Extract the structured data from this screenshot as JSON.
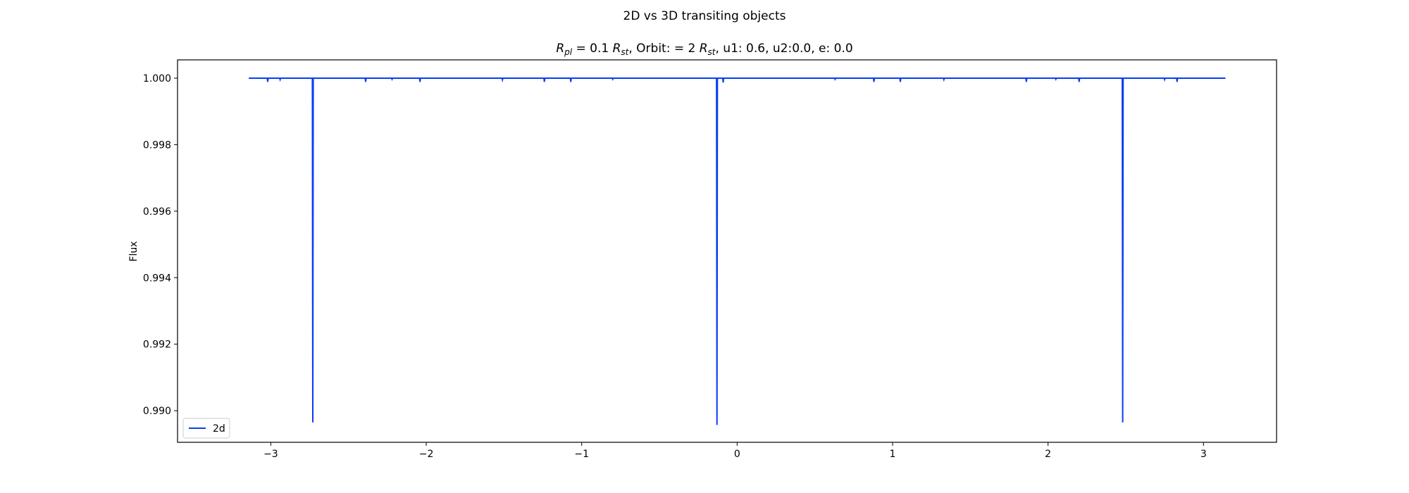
{
  "chart_data": {
    "type": "line",
    "suptitle": "2D vs 3D transiting objects",
    "title": {
      "r_pl_symbol": "R",
      "r_pl_sub": "pl",
      "r_pl_text": " = 0.1 ",
      "r_st_symbol": "R",
      "r_st_sub": "st",
      "orbit_text": ", Orbit: = 2 ",
      "r_st2_symbol": "R",
      "r_st2_sub": "st",
      "tail_text": ", u1: 0.6, u2:0.0, e: 0.0"
    },
    "xlabel": "",
    "ylabel": "Flux",
    "xlim": [
      -3.6,
      3.47
    ],
    "ylim": [
      0.98905,
      1.00055
    ],
    "xticks": [
      -3,
      -2,
      -1,
      0,
      1,
      2,
      3
    ],
    "xtick_labels": [
      "−3",
      "−2",
      "−1",
      "0",
      "1",
      "2",
      "3"
    ],
    "yticks": [
      0.99,
      0.992,
      0.994,
      0.996,
      0.998,
      1.0
    ],
    "ytick_labels": [
      "0.990",
      "0.992",
      "0.994",
      "0.996",
      "0.998",
      "1.000"
    ],
    "grid": false,
    "legend_position": "lower-left",
    "series": [
      {
        "name": "2d",
        "color": "#0b3df5",
        "baseline": 1.0,
        "x_range": [
          -3.1416,
          3.1416
        ],
        "dips": [
          {
            "x": -3.02,
            "min": 0.99989
          },
          {
            "x": -2.94,
            "min": 0.99996
          },
          {
            "x": -2.73,
            "min": 0.98965
          },
          {
            "x": -2.39,
            "min": 0.99989
          },
          {
            "x": -2.22,
            "min": 0.99997
          },
          {
            "x": -2.04,
            "min": 0.99989
          },
          {
            "x": -1.51,
            "min": 0.99995
          },
          {
            "x": -1.24,
            "min": 0.99989
          },
          {
            "x": -1.07,
            "min": 0.99989
          },
          {
            "x": -0.8,
            "min": 0.99997
          },
          {
            "x": -0.13,
            "min": 0.98957
          },
          {
            "x": -0.09,
            "min": 0.99987
          },
          {
            "x": 0.63,
            "min": 0.99997
          },
          {
            "x": 0.88,
            "min": 0.99989
          },
          {
            "x": 1.05,
            "min": 0.99989
          },
          {
            "x": 1.33,
            "min": 0.99996
          },
          {
            "x": 1.86,
            "min": 0.99989
          },
          {
            "x": 2.05,
            "min": 0.99997
          },
          {
            "x": 2.2,
            "min": 0.99989
          },
          {
            "x": 2.48,
            "min": 0.98965
          },
          {
            "x": 2.75,
            "min": 0.99996
          },
          {
            "x": 2.83,
            "min": 0.99989
          }
        ]
      }
    ]
  }
}
